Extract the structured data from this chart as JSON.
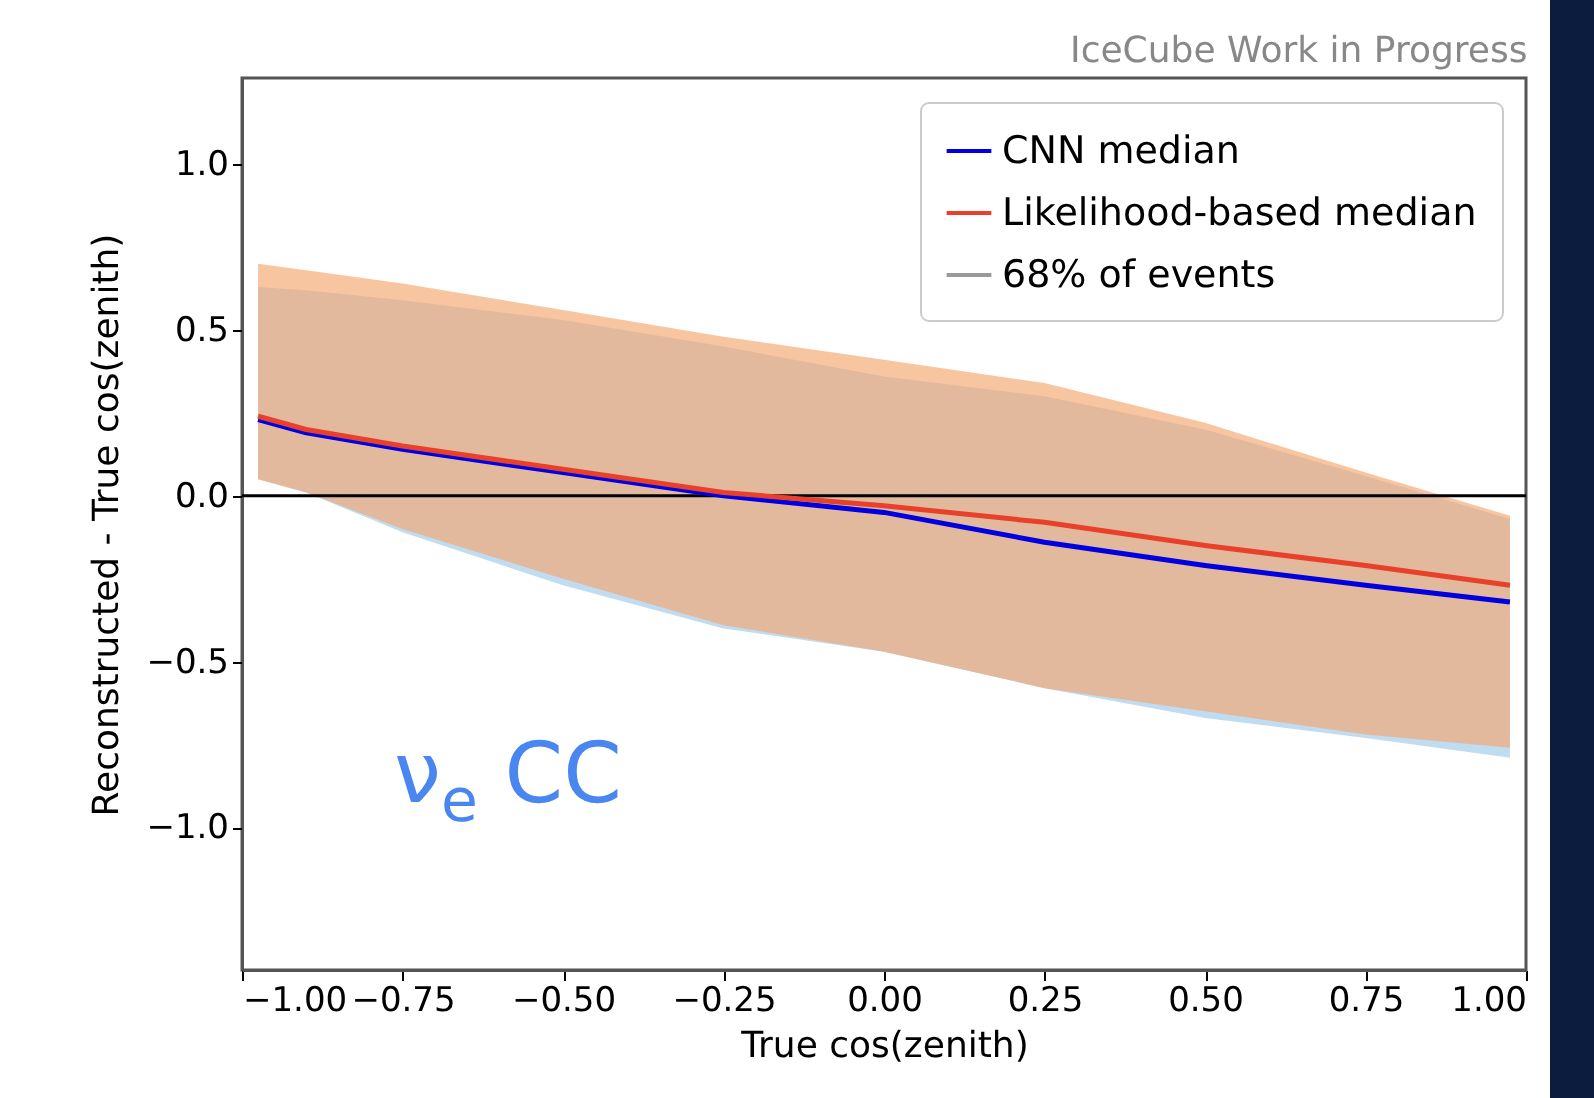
{
  "chart_data": {
    "type": "line",
    "title": "IceCube Work in Progress",
    "xlabel": "True cos(zenith)",
    "ylabel": "Reconstructed - True cos(zenith)",
    "x": [
      -0.975,
      -0.9,
      -0.75,
      -0.5,
      -0.25,
      0,
      0.25,
      0.5,
      0.75,
      0.975
    ],
    "series": [
      {
        "name": "CNN median",
        "color": "#0000e0",
        "values": [
          0.23,
          0.19,
          0.14,
          0.07,
          0.0,
          -0.05,
          -0.14,
          -0.21,
          -0.27,
          -0.32
        ],
        "lower": [
          0.05,
          0.01,
          -0.11,
          -0.27,
          -0.4,
          -0.47,
          -0.58,
          -0.67,
          -0.73,
          -0.79
        ],
        "upper": [
          0.63,
          0.62,
          0.59,
          0.53,
          0.45,
          0.36,
          0.3,
          0.2,
          0.06,
          -0.07
        ]
      },
      {
        "name": "Likelihood-based median",
        "color": "#e8402a",
        "values": [
          0.24,
          0.2,
          0.15,
          0.08,
          0.01,
          -0.03,
          -0.08,
          -0.15,
          -0.21,
          -0.27
        ],
        "lower": [
          0.05,
          0.01,
          -0.1,
          -0.25,
          -0.39,
          -0.47,
          -0.58,
          -0.65,
          -0.72,
          -0.76
        ],
        "upper": [
          0.7,
          0.68,
          0.64,
          0.56,
          0.48,
          0.41,
          0.34,
          0.22,
          0.07,
          -0.06
        ]
      }
    ],
    "xlim": [
      -1,
      1
    ],
    "xticks": [
      {
        "value": -1,
        "label": "−1.00"
      },
      {
        "value": -0.75,
        "label": "−0.75"
      },
      {
        "value": -0.5,
        "label": "−0.50"
      },
      {
        "value": -0.25,
        "label": "−0.25"
      },
      {
        "value": 0,
        "label": "0.00"
      },
      {
        "value": 0.25,
        "label": "0.25"
      },
      {
        "value": 0.5,
        "label": "0.50"
      },
      {
        "value": 0.75,
        "label": "0.75"
      },
      {
        "value": 1,
        "label": "1.00"
      }
    ],
    "ylim": [
      -1.43,
      1.26
    ],
    "yticks": [
      {
        "value": -1,
        "label": "−1.0"
      },
      {
        "value": -0.5,
        "label": "−0.5"
      },
      {
        "value": 0,
        "label": "0.0"
      },
      {
        "value": 0.5,
        "label": "0.5"
      },
      {
        "value": 1,
        "label": "1.0"
      }
    ],
    "ref_lines": [
      {
        "axis": "y",
        "value": 0,
        "color": "#000000"
      }
    ],
    "annotations": [
      "68% of events",
      "ν$_{e}$ CC"
    ],
    "legend": "top right",
    "grid": false
  }
}
